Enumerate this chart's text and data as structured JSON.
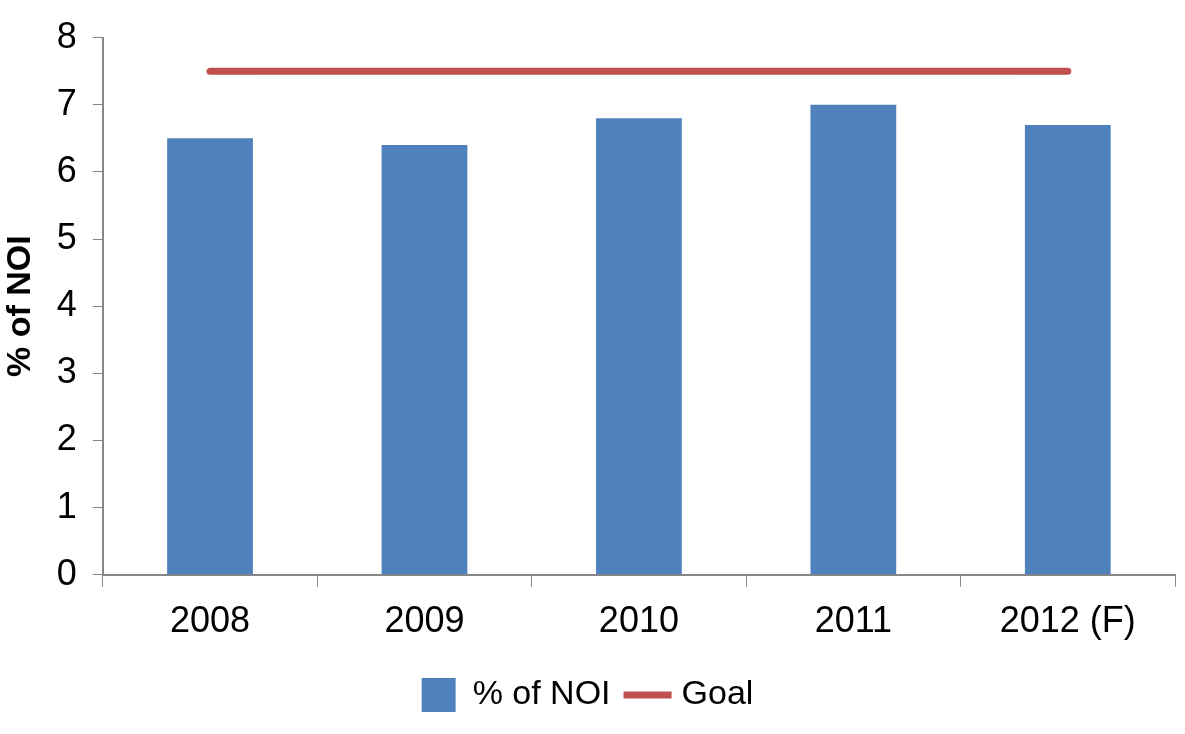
{
  "chart_data": {
    "type": "bar",
    "ylabel": "% of NOI",
    "categories": [
      "2008",
      "2009",
      "2010",
      "2011",
      "2012 (F)"
    ],
    "series": [
      {
        "name": "% of NOI",
        "color": "#4f81bd",
        "values": [
          6.5,
          6.4,
          6.8,
          7.0,
          6.7
        ]
      },
      {
        "name": "Goal",
        "type": "line",
        "color": "#c0504d",
        "values": [
          7.5,
          7.5,
          7.5,
          7.5,
          7.5
        ]
      }
    ],
    "ylim": [
      0,
      8
    ],
    "yticks": [
      0,
      1,
      2,
      3,
      4,
      5,
      6,
      7,
      8
    ],
    "grid": false,
    "legend": "bottom",
    "marker": "none",
    "line_style": "solid"
  }
}
